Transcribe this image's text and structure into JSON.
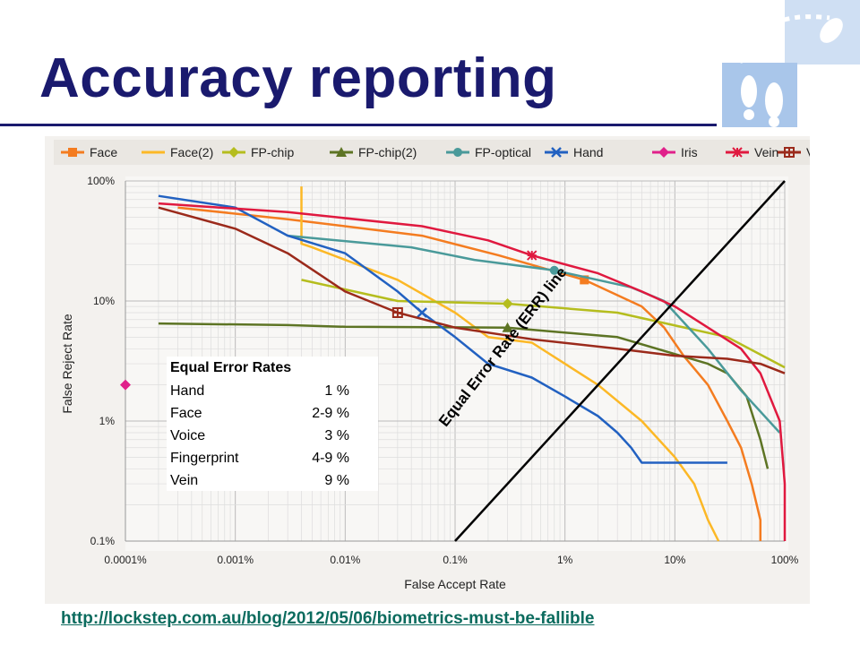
{
  "slide": {
    "title": "Accuracy reporting",
    "link": "http://lockstep.com.au/blog/2012/05/06/biometrics-must-be-fallible"
  },
  "logo": {
    "icon": "footprints-logo-icon",
    "color": "#a9c6ea"
  },
  "eer_table": {
    "title": "Equal Error Rates",
    "rows": [
      {
        "name": "Hand",
        "value": "1 %"
      },
      {
        "name": "Face",
        "value": "2-9 %"
      },
      {
        "name": "Voice",
        "value": "3 %"
      },
      {
        "name": "Fingerprint",
        "value": "4-9 %"
      },
      {
        "name": "Vein",
        "value": "9 %"
      }
    ]
  },
  "err_line_label": "Equal Error Rate (ERR) line",
  "chart_data": {
    "type": "line",
    "title": "",
    "xlabel": "False Accept Rate",
    "ylabel": "False Reject Rate",
    "xscale": "log",
    "yscale": "log",
    "xlim": [
      0.0001,
      100
    ],
    "ylim": [
      0.1,
      100
    ],
    "x_ticks": [
      0.0001,
      0.001,
      0.01,
      0.1,
      1,
      10,
      100
    ],
    "x_tick_labels": [
      "0.0001%",
      "0.001%",
      "0.01%",
      "0.1%",
      "1%",
      "10%",
      "100%"
    ],
    "y_ticks": [
      0.1,
      1,
      10,
      100
    ],
    "y_tick_labels": [
      "0.1%",
      "1%",
      "10%",
      "100%"
    ],
    "grid": true,
    "legend_position": "top",
    "series": [
      {
        "name": "Face",
        "color": "#f47c20",
        "marker": "square",
        "x": [
          0.0003,
          0.003,
          0.05,
          0.25,
          1.5,
          5,
          8,
          12,
          20,
          30,
          40,
          50,
          60,
          60
        ],
        "y": [
          60,
          48,
          35,
          24,
          15,
          9,
          6,
          3.5,
          2,
          1,
          0.6,
          0.3,
          0.15,
          0.1
        ]
      },
      {
        "name": "Face(2)",
        "color": "#fcb826",
        "marker": "none",
        "x": [
          0.004,
          0.004,
          0.005,
          0.01,
          0.03,
          0.1,
          0.2,
          0.5,
          1,
          2,
          5,
          10,
          15,
          20,
          25
        ],
        "y": [
          90,
          30,
          28,
          22,
          15,
          8,
          5,
          4.5,
          3,
          2,
          1,
          0.5,
          0.3,
          0.15,
          0.1
        ]
      },
      {
        "name": "FP-chip",
        "color": "#b5bd1e",
        "marker": "diamond",
        "x": [
          0.004,
          0.03,
          0.3,
          3,
          30,
          100
        ],
        "y": [
          15,
          10,
          9.5,
          8,
          5,
          2.8
        ]
      },
      {
        "name": "FP-chip(2)",
        "color": "#5d7424",
        "marker": "triangle",
        "x": [
          0.0002,
          0.003,
          0.01,
          0.3,
          3,
          20,
          30,
          45,
          60,
          70
        ],
        "y": [
          6.5,
          6.3,
          6.1,
          6,
          5,
          3,
          2.5,
          1.6,
          0.7,
          0.4
        ]
      },
      {
        "name": "FP-optical",
        "color": "#4a9a9a",
        "marker": "circle",
        "x": [
          0.003,
          0.04,
          0.15,
          0.8,
          4,
          8,
          10,
          20,
          40,
          90
        ],
        "y": [
          35,
          28,
          22,
          18,
          13,
          10,
          8,
          4,
          1.8,
          0.8
        ]
      },
      {
        "name": "Hand",
        "color": "#2261c1",
        "marker": "x",
        "x": [
          0.0002,
          0.001,
          0.003,
          0.01,
          0.03,
          0.05,
          0.1,
          0.2,
          0.5,
          1,
          2,
          3,
          4,
          5,
          10,
          30
        ],
        "y": [
          75,
          60,
          35,
          25,
          12,
          8,
          5,
          3,
          2.3,
          1.6,
          1.1,
          0.8,
          0.6,
          0.45,
          0.45,
          0.45
        ]
      },
      {
        "name": "Iris",
        "color": "#e0208a",
        "marker": "diamond",
        "x": [
          0.0001
        ],
        "y": [
          2
        ]
      },
      {
        "name": "Vein",
        "color": "#e0193f",
        "marker": "star",
        "x": [
          0.0002,
          0.003,
          0.05,
          0.2,
          0.5,
          2,
          5,
          10,
          20,
          40,
          60,
          90,
          100,
          100
        ],
        "y": [
          65,
          55,
          42,
          32,
          24,
          17,
          12,
          9,
          6,
          4,
          2.5,
          1,
          0.3,
          0.1
        ]
      },
      {
        "name": "Voice",
        "color": "#9b2a1b",
        "marker": "plus-square",
        "x": [
          0.0002,
          0.001,
          0.003,
          0.01,
          0.03,
          0.1,
          0.5,
          3,
          10,
          30,
          60,
          100
        ],
        "y": [
          60,
          40,
          25,
          12,
          8,
          6,
          4.8,
          4,
          3.5,
          3.3,
          3,
          2.5
        ]
      }
    ],
    "err_line": {
      "x": [
        0.1,
        100
      ],
      "y": [
        0.1,
        100
      ]
    }
  }
}
